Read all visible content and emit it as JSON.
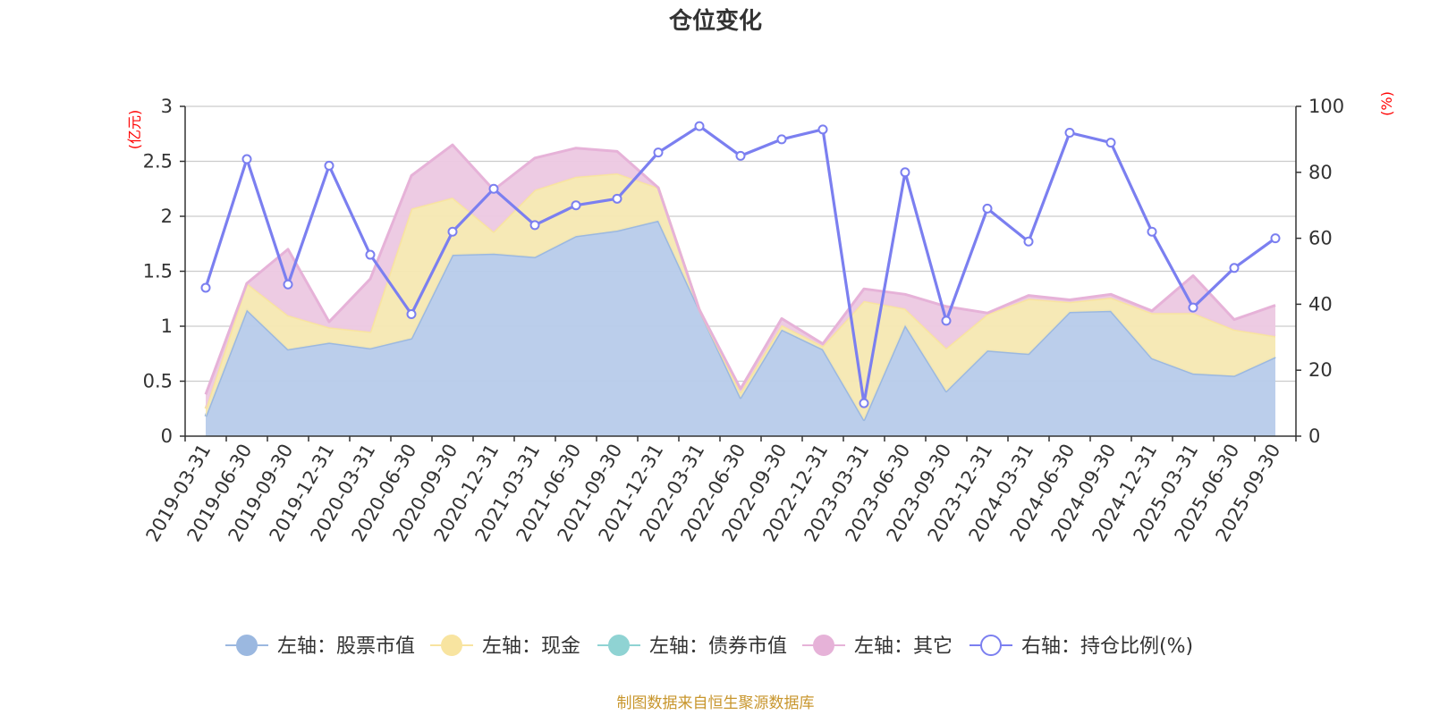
{
  "chart_data": {
    "type": "area",
    "title": "仓位变化",
    "source_note": "制图数据来自恒生聚源数据库",
    "left_axis": {
      "unit": "(亿元)",
      "ylim": [
        0,
        3
      ],
      "ticks": [
        "0",
        "0.5",
        "1",
        "1.5",
        "2",
        "2.5",
        "3"
      ],
      "tick_values": [
        0,
        0.5,
        1,
        1.5,
        2,
        2.5,
        3
      ]
    },
    "right_axis": {
      "unit": "(%)",
      "ylim": [
        0,
        100
      ],
      "ticks": [
        "0",
        "20",
        "40",
        "60",
        "80",
        "100"
      ],
      "tick_values": [
        0,
        20,
        40,
        60,
        80,
        100
      ]
    },
    "categories": [
      "2019-03-31",
      "2019-06-30",
      "2019-09-30",
      "2019-12-31",
      "2020-03-31",
      "2020-06-30",
      "2020-09-30",
      "2020-12-31",
      "2021-03-31",
      "2021-06-30",
      "2021-09-30",
      "2021-12-31",
      "2022-03-31",
      "2022-06-30",
      "2022-09-30",
      "2022-12-31",
      "2023-03-31",
      "2023-06-30",
      "2023-09-30",
      "2023-12-31",
      "2024-03-31",
      "2024-06-30",
      "2024-09-30",
      "2024-12-31",
      "2025-03-31",
      "2025-06-30",
      "2025-09-30"
    ],
    "series": [
      {
        "name": "左轴：股票市值",
        "axis": "left",
        "kind": "stacked-area",
        "color": "#9bb8e0",
        "fill": "#b7cbea",
        "values": [
          0.18,
          1.15,
          0.79,
          0.85,
          0.8,
          0.89,
          1.65,
          1.66,
          1.63,
          1.82,
          1.87,
          1.96,
          1.15,
          0.35,
          0.97,
          0.79,
          0.15,
          1.01,
          0.41,
          0.78,
          0.75,
          1.13,
          1.14,
          0.71,
          0.57,
          0.55,
          0.72
        ]
      },
      {
        "name": "左轴：现金",
        "axis": "left",
        "kind": "stacked-area",
        "color": "#f8e4a0",
        "fill": "#f6e8b2",
        "values": [
          0.07,
          0.24,
          0.31,
          0.14,
          0.15,
          1.18,
          0.52,
          0.2,
          0.61,
          0.54,
          0.52,
          0.3,
          0.0,
          0.05,
          0.04,
          0.03,
          1.08,
          0.15,
          0.39,
          0.33,
          0.5,
          0.09,
          0.12,
          0.41,
          0.55,
          0.42,
          0.19
        ]
      },
      {
        "name": "左轴：债券市值",
        "axis": "left",
        "kind": "stacked-area",
        "color": "#8fd3d3",
        "fill": "#aee2e2",
        "values": [
          0,
          0,
          0,
          0,
          0,
          0,
          0,
          0,
          0,
          0,
          0,
          0,
          0,
          0,
          0,
          0,
          0,
          0,
          0,
          0,
          0,
          0,
          0,
          0,
          0,
          0,
          0
        ]
      },
      {
        "name": "左轴：其它",
        "axis": "left",
        "kind": "stacked-area",
        "color": "#e6b2d8",
        "fill": "#ecc8e2",
        "values": [
          0.13,
          0.0,
          0.6,
          0.05,
          0.48,
          0.3,
          0.48,
          0.38,
          0.29,
          0.26,
          0.2,
          0.0,
          0.0,
          0.03,
          0.06,
          0.02,
          0.11,
          0.13,
          0.38,
          0.01,
          0.03,
          0.02,
          0.03,
          0.02,
          0.34,
          0.09,
          0.28
        ]
      },
      {
        "name": "右轴：持仓比例(%)",
        "axis": "right",
        "kind": "line",
        "color": "#7b7ff0",
        "values": [
          45,
          84,
          46,
          82,
          55,
          37,
          62,
          75,
          64,
          70,
          72,
          86,
          94,
          85,
          90,
          93,
          10,
          80,
          35,
          69,
          59,
          92,
          89,
          62,
          39,
          51,
          60
        ]
      }
    ]
  }
}
